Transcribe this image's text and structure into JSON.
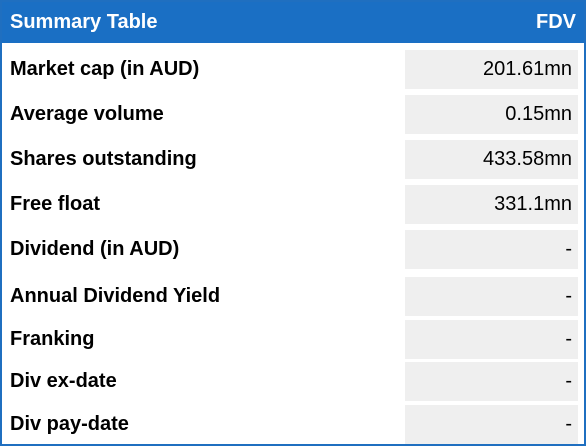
{
  "table": {
    "title": "Summary Table",
    "ticker": "FDV",
    "rows": [
      {
        "label": "Market cap (in AUD)",
        "value": "201.61mn"
      },
      {
        "label": "Average volume",
        "value": "0.15mn"
      },
      {
        "label": "Shares outstanding",
        "value": "433.58mn"
      },
      {
        "label": "Free float",
        "value": "331.1mn"
      },
      {
        "label": "Dividend (in AUD)",
        "value": "-"
      },
      {
        "label": "Annual Dividend Yield",
        "value": "-"
      },
      {
        "label": "Franking",
        "value": "-"
      },
      {
        "label": "Div ex-date",
        "value": "-"
      },
      {
        "label": "Div pay-date",
        "value": "-"
      }
    ]
  },
  "colors": {
    "header_bg": "#1a6fc4",
    "header_text": "#ffffff",
    "cell_bg": "#efefef",
    "border": "#1f6fc0"
  }
}
